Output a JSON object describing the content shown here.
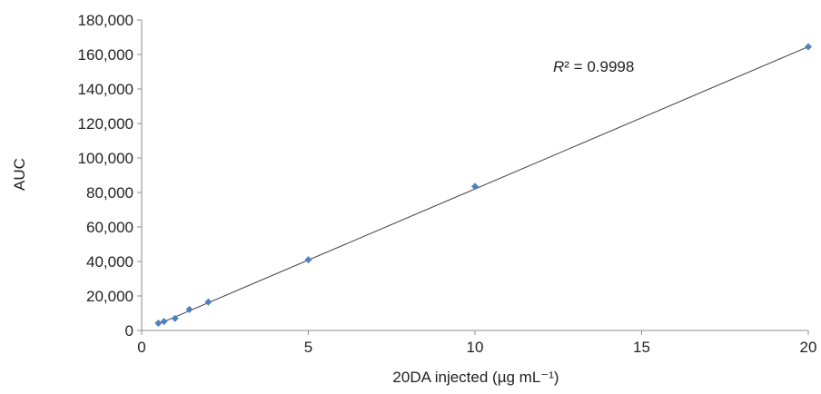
{
  "chart_data": {
    "type": "scatter",
    "title": "",
    "xlabel": "20DA injected (µg mL⁻¹)",
    "ylabel": "AUC",
    "xlim": [
      0,
      20
    ],
    "ylim": [
      0,
      180000
    ],
    "xticks": [
      0,
      5,
      10,
      15,
      20
    ],
    "xtick_labels": [
      "0",
      "5",
      "10",
      "15",
      "20"
    ],
    "yticks": [
      0,
      20000,
      40000,
      60000,
      80000,
      100000,
      120000,
      140000,
      160000,
      180000
    ],
    "ytick_labels": [
      "0",
      "20,000",
      "40,000",
      "60,000",
      "80,000",
      "100,000",
      "120,000",
      "140,000",
      "160,000",
      "180,000"
    ],
    "grid": false,
    "legend": "none",
    "series": [
      {
        "marker": "diamond",
        "color": "#4F81BD",
        "points": [
          {
            "x": 0.5,
            "y": 4200
          },
          {
            "x": 0.67,
            "y": 5200
          },
          {
            "x": 1.0,
            "y": 7000
          },
          {
            "x": 1.43,
            "y": 12200
          },
          {
            "x": 2.0,
            "y": 16500
          },
          {
            "x": 5.0,
            "y": 41000
          },
          {
            "x": 10.0,
            "y": 83500
          },
          {
            "x": 20.0,
            "y": 164500
          }
        ]
      }
    ],
    "trendline": {
      "type": "linear",
      "color": "#404040",
      "x_range": [
        0.5,
        20
      ],
      "y_range": [
        3700,
        164500
      ]
    },
    "annotation": {
      "r2_symbol": "R",
      "r2_rest": "² = 0.9998"
    },
    "colors": {
      "axis": "#8C8C8C",
      "text": "#222222",
      "marker": "#4F81BD"
    }
  }
}
